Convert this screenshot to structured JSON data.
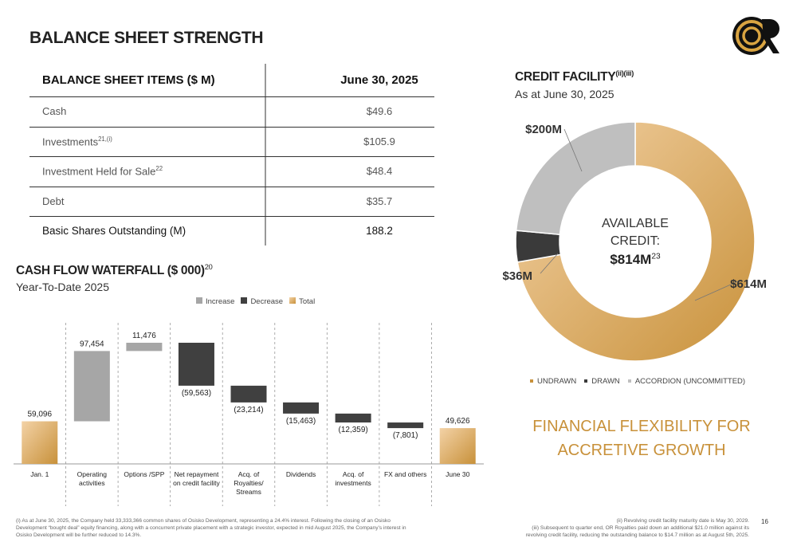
{
  "title": "BALANCE SHEET STRENGTH",
  "table": {
    "header": [
      "BALANCE SHEET ITEMS ($ M)",
      "June 30, 2025"
    ],
    "rows": [
      {
        "label": "Cash",
        "value": "$49.6"
      },
      {
        "label": "Investments",
        "sup": "21,(i)",
        "value": "$105.9"
      },
      {
        "label": "Investment Held for Sale",
        "sup": "22",
        "value": "$48.4"
      },
      {
        "label": "Debt",
        "value": "$35.7"
      },
      {
        "label": "Basic Shares Outstanding (M)",
        "value": "188.2"
      }
    ]
  },
  "chart_data": [
    {
      "type": "waterfall",
      "title": "CASH FLOW WATERFALL ($ 000)",
      "title_sup": "20",
      "subtitle": "Year-To-Date 2025",
      "legend": [
        {
          "name": "Increase",
          "color": "#a6a6a6"
        },
        {
          "name": "Decrease",
          "color": "#404040"
        },
        {
          "name": "Total",
          "color": "#c8913a"
        }
      ],
      "categories": [
        "Jan. 1",
        "Operating activities",
        "Options /SPP",
        "Net repayment on credit facility",
        "Acq. of Royalties/ Streams",
        "Dividends",
        "Acq. of investments",
        "FX and others",
        "June 30"
      ],
      "values": [
        59096,
        97454,
        11476,
        -59563,
        -23214,
        -15463,
        -12359,
        -7801,
        49626
      ],
      "value_labels": [
        "59,096",
        "97,454",
        "11,476",
        "(59,563)",
        "(23,214)",
        "(15,463)",
        "(12,359)",
        "(7,801)",
        "49,626"
      ]
    },
    {
      "type": "donut",
      "title": "CREDIT FACILITY",
      "title_sup": "(ii)(iii)",
      "subtitle": "As at June 30, 2025",
      "center_label": "AVAILABLE CREDIT:",
      "center_value": "$814M",
      "center_sup": "23",
      "categories": [
        "UNDRAWN",
        "DRAWN",
        "ACCORDION (UNCOMMITTED)"
      ],
      "values": [
        614,
        36,
        200
      ],
      "value_labels": [
        "$614M",
        "$36M",
        "$200M"
      ],
      "colors": [
        "#c8913a",
        "#3a3a3a",
        "#bfbfbf"
      ]
    }
  ],
  "tagline": "FINANCIAL FLEXIBILITY FOR ACCRETIVE GROWTH",
  "footnotes": {
    "left": "(i) As at June 30, 2025, the Company held 33,333,366 common shares of Osisko Development, representing a 24.4% interest. Following the closing of an Osisko Development “bought deal” equity financing, along with a concurrent private placement with a strategic investor, expected in mid August 2025, the Company’s interest in Osisko Development will be further reduced to 14.3%.",
    "right": [
      "(ii) Revolving credit facility maturity date is May 30, 2029.",
      "(iii) Subsequent to quarter end, OR Royalties paid down an additional $21.0 million against its revolving credit facility, reducing the outstanding balance to $14.7 million as at August 5th, 2025."
    ]
  },
  "page_number": "16"
}
